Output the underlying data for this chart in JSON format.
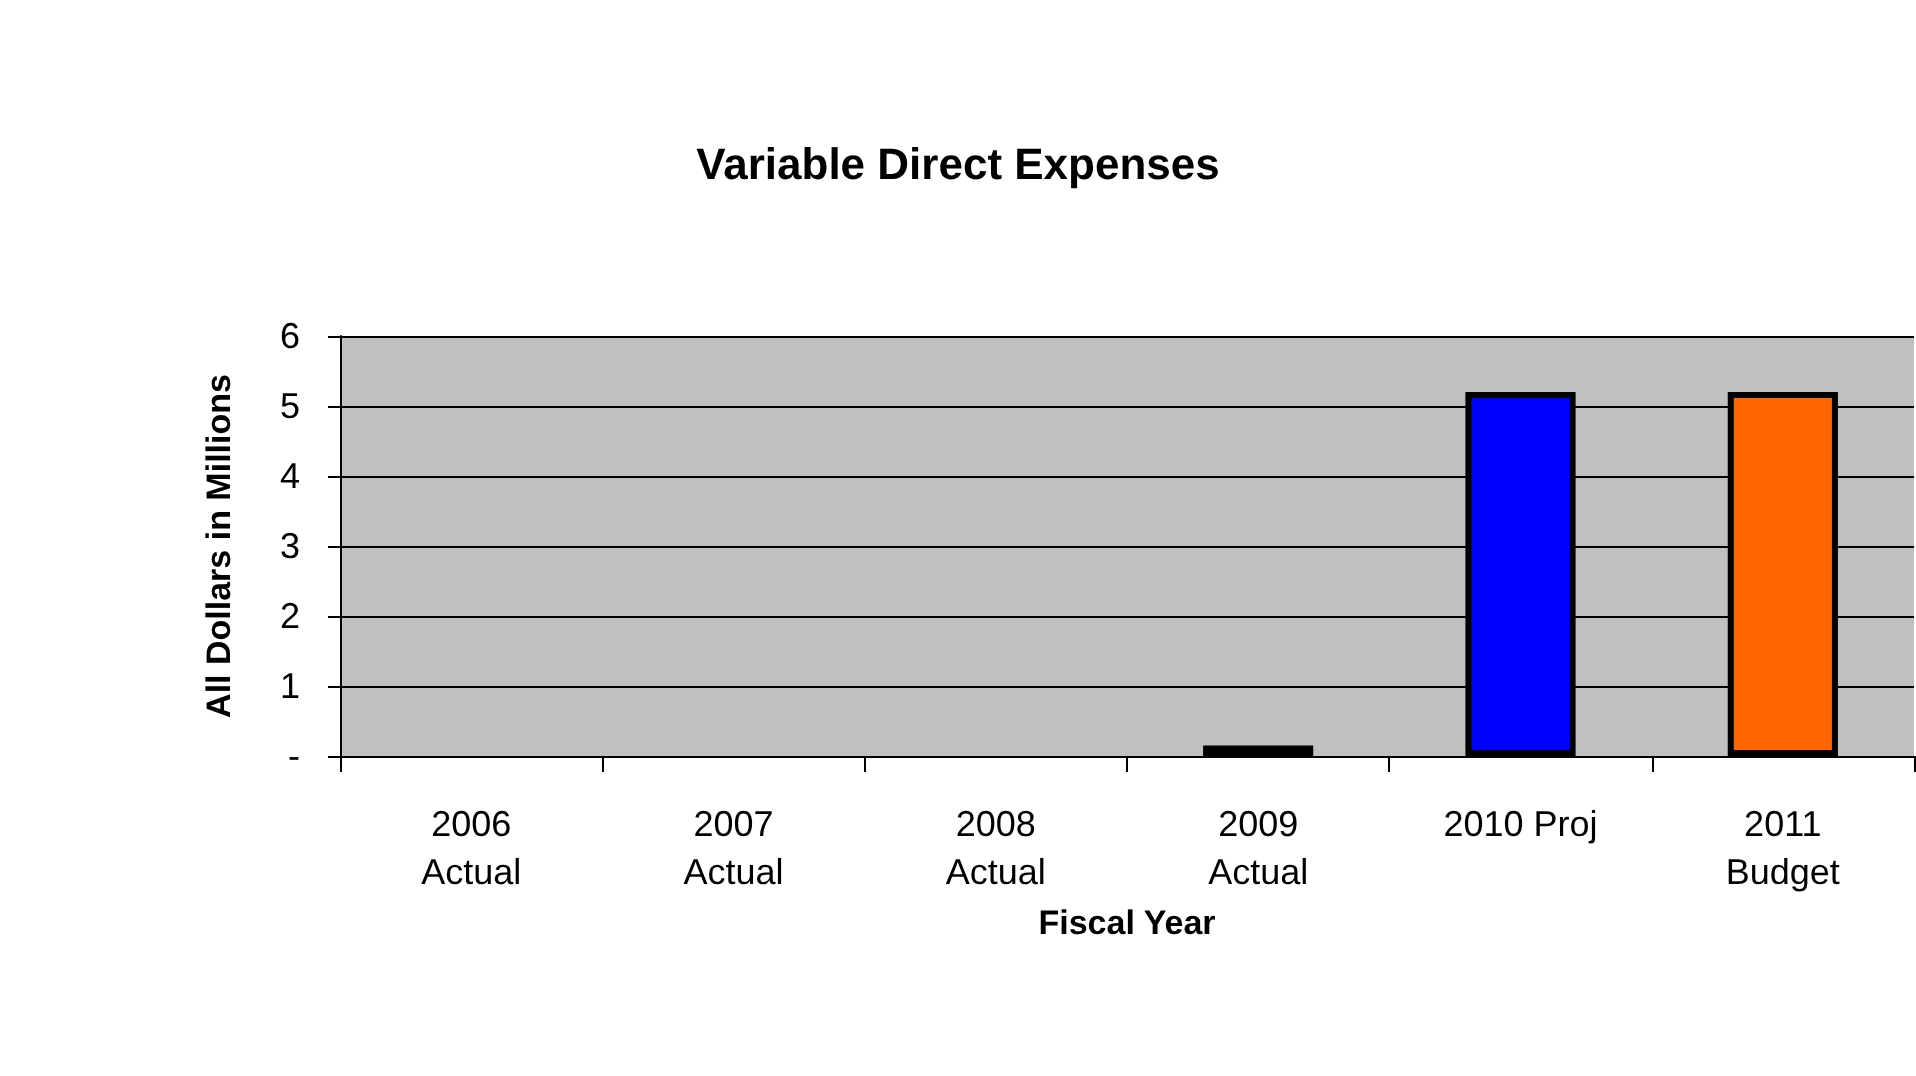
{
  "chart_data": {
    "type": "bar",
    "title": "Variable Direct Expenses",
    "xlabel": "Fiscal Year",
    "ylabel": "All Dollars in Millions",
    "categories": [
      "2006\nActual",
      "2007\nActual",
      "2008\nActual",
      "2009\nActual",
      "2010 Proj",
      "2011\nBudget"
    ],
    "values": [
      0,
      0,
      0,
      0.15,
      5.2,
      5.2
    ],
    "colors": [
      "#0000ff",
      "#0000ff",
      "#0000ff",
      "#0000ff",
      "#0000ff",
      "#ff6600"
    ],
    "ylim": [
      0,
      6
    ],
    "yticks": [
      {
        "value": 0,
        "label": "-"
      },
      1,
      2,
      3,
      4,
      5,
      6
    ],
    "grid": "y"
  }
}
